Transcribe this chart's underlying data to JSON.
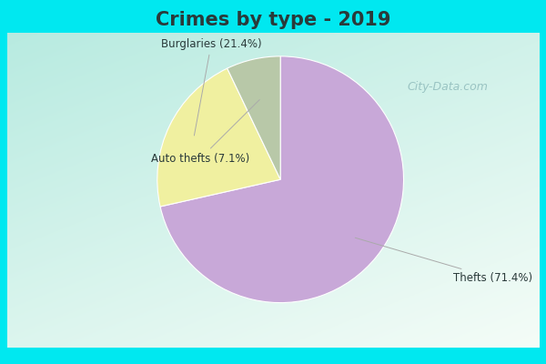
{
  "title": "Crimes by type - 2019",
  "slices": [
    {
      "label": "Thefts",
      "pct": 71.4,
      "color": "#c8a8d8"
    },
    {
      "label": "Burglaries",
      "pct": 21.4,
      "color": "#f0f0a0"
    },
    {
      "label": "Auto thefts",
      "pct": 7.1,
      "color": "#b8c8a8"
    }
  ],
  "title_fontsize": 15,
  "bg_cyan": "#00e8f0",
  "title_color": "#2a3a3a",
  "label_fontsize": 8.5,
  "watermark": "City-Data.com",
  "watermark_color": "#90bcbc",
  "label_color": "#2a3a3a",
  "line_color": "#aaaaaa"
}
